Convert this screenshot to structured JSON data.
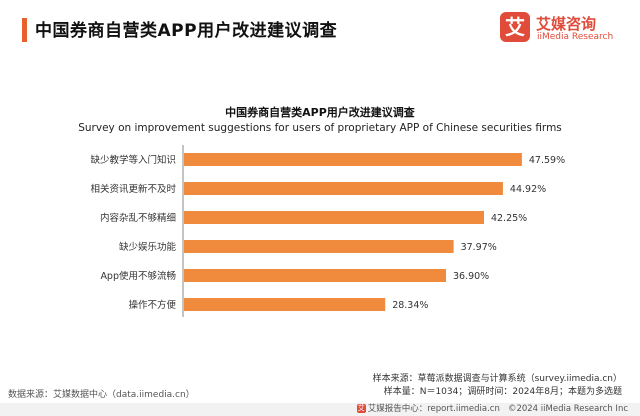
{
  "header": {
    "title": "中国券商自营类APP用户改进建议调查"
  },
  "logo": {
    "badge_char": "艾",
    "name_cn": "艾媒咨询",
    "name_en": "iiMedia Research"
  },
  "colors": {
    "accent": "#E8612C",
    "bar": "#F08A3C",
    "logo": "#E04B3A"
  },
  "chart_data": {
    "type": "bar",
    "orientation": "horizontal",
    "title": "中国券商自营类APP用户改进建议调查",
    "subtitle": "Survey on improvement suggestions for users of proprietary APP of Chinese securities firms",
    "categories": [
      "缺少教学等入门知识",
      "相关资讯更新不及时",
      "内容杂乱不够精细",
      "缺少娱乐功能",
      "App使用不够流畅",
      "操作不方便"
    ],
    "values": [
      47.59,
      44.92,
      42.25,
      37.97,
      36.9,
      28.34
    ],
    "value_labels": [
      "47.59%",
      "44.92%",
      "42.25%",
      "37.97%",
      "36.90%",
      "28.34%"
    ],
    "xlabel": "",
    "ylabel": "",
    "xlim": [
      0,
      50
    ],
    "grid": false,
    "legend": "none"
  },
  "footer": {
    "data_source": "数据来源：艾媒数据中心（data.iimedia.cn）",
    "sample_source": "样本来源：草莓派数据调查与计算系统（survey.iimedia.cn）",
    "sample_info": "样本量：N＝1034；调研时间：2024年8月；本题为多选题",
    "report_center": "艾媒报告中心：report.iimedia.cn",
    "copyright": "©2024  iiMedia Research  Inc"
  }
}
